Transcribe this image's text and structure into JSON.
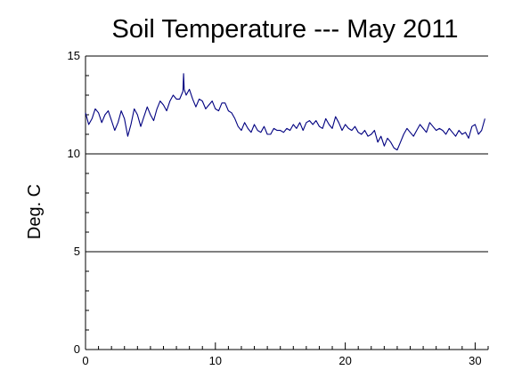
{
  "chart_data": {
    "type": "line",
    "title": "Soil Temperature --- May 2011",
    "xlabel": "",
    "ylabel": "Deg. C",
    "xlim": [
      0,
      31
    ],
    "ylim": [
      0,
      15
    ],
    "x_ticks": [
      "0",
      "10",
      "20",
      "30"
    ],
    "y_ticks": [
      "0",
      "5",
      "10",
      "15"
    ],
    "grid": "horizontal at major y ticks",
    "line_color": "#000080",
    "series": [
      {
        "x": [
          0.0,
          0.25,
          0.5,
          0.75,
          1.0,
          1.25,
          1.5,
          1.75,
          2.0,
          2.25,
          2.5,
          2.75,
          3.0,
          3.25,
          3.5,
          3.75,
          4.0,
          4.25,
          4.5,
          4.75,
          5.0,
          5.25,
          5.5,
          5.75,
          6.0,
          6.25,
          6.5,
          6.75,
          7.0,
          7.25,
          7.5,
          7.55,
          7.6,
          7.75,
          8.0,
          8.25,
          8.5,
          8.75,
          9.0,
          9.25,
          9.5,
          9.75,
          10.0,
          10.25,
          10.5,
          10.75,
          11.0,
          11.25,
          11.5,
          11.75,
          12.0,
          12.25,
          12.5,
          12.75,
          13.0,
          13.25,
          13.5,
          13.75,
          14.0,
          14.25,
          14.5,
          14.75,
          15.0,
          15.25,
          15.5,
          15.75,
          16.0,
          16.25,
          16.5,
          16.75,
          17.0,
          17.25,
          17.5,
          17.75,
          18.0,
          18.25,
          18.5,
          18.75,
          19.0,
          19.25,
          19.5,
          19.75,
          20.0,
          20.25,
          20.5,
          20.75,
          21.0,
          21.25,
          21.5,
          21.75,
          22.0,
          22.25,
          22.5,
          22.75,
          23.0,
          23.25,
          23.5,
          23.75,
          24.0,
          24.25,
          24.5,
          24.75,
          25.0,
          25.25,
          25.5,
          25.75,
          26.0,
          26.25,
          26.5,
          26.75,
          27.0,
          27.25,
          27.5,
          27.75,
          28.0,
          28.25,
          28.5,
          28.75,
          29.0,
          29.25,
          29.5,
          29.75,
          30.0,
          30.25,
          30.5,
          30.75
        ],
        "values": [
          12.1,
          11.5,
          11.8,
          12.3,
          12.1,
          11.6,
          12.0,
          12.2,
          11.7,
          11.2,
          11.6,
          12.2,
          11.8,
          10.9,
          11.5,
          12.3,
          12.0,
          11.4,
          11.9,
          12.4,
          12.0,
          11.7,
          12.3,
          12.7,
          12.5,
          12.2,
          12.7,
          13.0,
          12.8,
          12.8,
          13.2,
          14.1,
          13.3,
          13.0,
          13.3,
          12.8,
          12.4,
          12.8,
          12.7,
          12.3,
          12.5,
          12.7,
          12.3,
          12.2,
          12.6,
          12.6,
          12.2,
          12.1,
          11.8,
          11.4,
          11.2,
          11.6,
          11.3,
          11.1,
          11.5,
          11.2,
          11.1,
          11.4,
          11.0,
          11.0,
          11.3,
          11.2,
          11.2,
          11.1,
          11.3,
          11.2,
          11.5,
          11.3,
          11.6,
          11.2,
          11.6,
          11.7,
          11.5,
          11.7,
          11.4,
          11.3,
          11.8,
          11.5,
          11.3,
          11.9,
          11.6,
          11.2,
          11.5,
          11.3,
          11.2,
          11.4,
          11.1,
          11.0,
          11.2,
          10.9,
          11.0,
          11.2,
          10.6,
          10.9,
          10.4,
          10.8,
          10.6,
          10.3,
          10.2,
          10.6,
          11.0,
          11.3,
          11.1,
          10.9,
          11.2,
          11.5,
          11.3,
          11.1,
          11.6,
          11.4,
          11.2,
          11.3,
          11.2,
          11.0,
          11.3,
          11.1,
          10.9,
          11.2,
          11.0,
          11.1,
          10.8,
          11.4,
          11.5,
          11.0,
          11.2,
          11.8
        ]
      }
    ]
  }
}
